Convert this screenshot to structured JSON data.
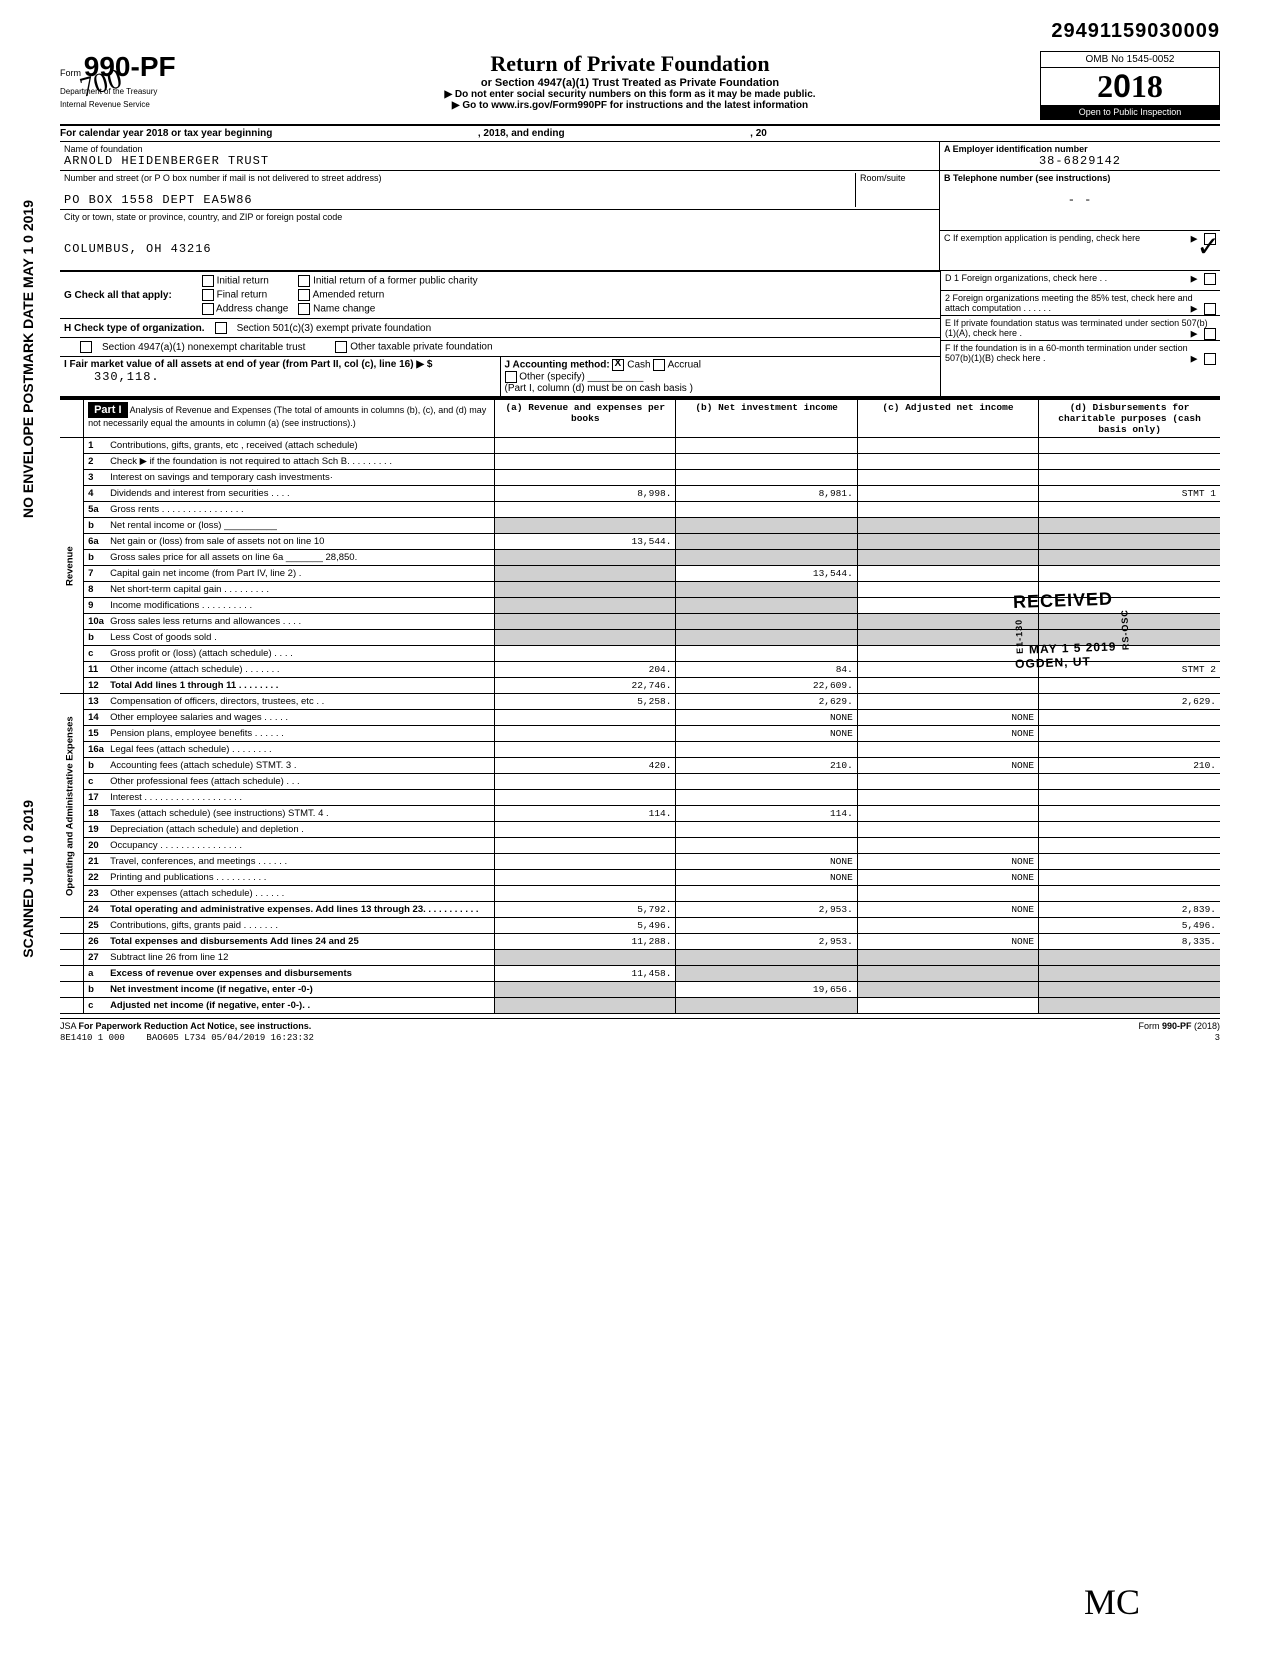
{
  "top_number": "29491159030009",
  "form": {
    "number_prefix": "Form",
    "number": "990-PF",
    "dept": "Department of the Treasury",
    "irs": "Internal Revenue Service",
    "title": "Return of Private Foundation",
    "subtitle": "or Section 4947(a)(1) Trust Treated as Private Foundation",
    "note1": "▶ Do not enter social security numbers on this form as it may be made public.",
    "note2": "▶ Go to www.irs.gov/Form990PF for instructions and the latest information",
    "omb": "OMB No 1545-0052",
    "year": "2018",
    "inspection": "Open to Public Inspection"
  },
  "tax_year": {
    "label": "For calendar year 2018 or tax year beginning",
    "mid": ", 2018, and ending",
    "end": ", 20"
  },
  "foundation": {
    "name_label": "Name of foundation",
    "name": "ARNOLD HEIDENBERGER TRUST",
    "addr_label": "Number and street (or P O  box number if mail is not delivered to street address)",
    "addr": "PO BOX 1558 DEPT EA5W86",
    "city_label": "City or town, state or province, country, and ZIP or foreign postal code",
    "city": "COLUMBUS, OH 43216",
    "room_label": "Room/suite"
  },
  "right": {
    "a_label": "A  Employer identification number",
    "a_val": "38-6829142",
    "b_label": "B  Telephone number (see instructions)",
    "b_val": "-   -",
    "c_label": "C  If exemption application is pending, check here",
    "d1": "D  1  Foreign organizations, check here . .",
    "d2": "2  Foreign organizations meeting the 85% test, check here and attach computation . . . . . .",
    "e": "E  If private foundation status was terminated under section 507(b)(1)(A), check here .",
    "f": "F  If the foundation is in a 60-month termination under section 507(b)(1)(B) check here ."
  },
  "g": {
    "label": "G  Check all that apply:",
    "opts": [
      "Initial return",
      "Final return",
      "Address change",
      "Initial return of a former public charity",
      "Amended return",
      "Name change"
    ]
  },
  "h": {
    "label": "H  Check type of organization.",
    "opt1": "Section 501(c)(3) exempt private foundation",
    "opt2": "Section 4947(a)(1) nonexempt charitable trust",
    "opt3": "Other taxable private foundation"
  },
  "i": {
    "label": "I  Fair market value of all assets at end of year (from Part II, col (c), line 16) ▶ $",
    "val": "330,118."
  },
  "j": {
    "label": "J  Accounting method:",
    "cash": "Cash",
    "accrual": "Accrual",
    "other": "Other (specify)",
    "note": "(Part I, column (d) must be on cash basis )"
  },
  "part1": {
    "label": "Part I",
    "title": "Analysis of Revenue and Expenses (The total of amounts in columns (b), (c), and (d) may not necessarily equal the amounts in column (a) (see instructions).)",
    "col_a": "(a) Revenue and expenses per books",
    "col_b": "(b) Net investment income",
    "col_c": "(c) Adjusted net income",
    "col_d": "(d) Disbursements for charitable purposes (cash basis only)"
  },
  "side_revenue": "Revenue",
  "side_expenses": "Operating and Administrative Expenses",
  "rows": [
    {
      "n": "1",
      "desc": "Contributions, gifts, grants, etc , received (attach schedule)",
      "a": "",
      "b": "",
      "c": "",
      "d": ""
    },
    {
      "n": "2",
      "desc": "Check ▶       if the foundation is not required to attach Sch B. . . . . . . . .",
      "a": "",
      "b": "",
      "c": "",
      "d": ""
    },
    {
      "n": "3",
      "desc": "Interest on savings and temporary cash investments·",
      "a": "",
      "b": "",
      "c": "",
      "d": ""
    },
    {
      "n": "4",
      "desc": "Dividends and interest from securities . . . .",
      "a": "8,998.",
      "b": "8,981.",
      "c": "",
      "d": "STMT 1"
    },
    {
      "n": "5a",
      "desc": "Gross rents . . . . . . . . . . . . . . . .",
      "a": "",
      "b": "",
      "c": "",
      "d": ""
    },
    {
      "n": "b",
      "desc": "Net rental income or (loss) __________",
      "a": "",
      "b": "",
      "c": "",
      "d": "",
      "grey_abcd": true
    },
    {
      "n": "6a",
      "desc": "Net gain or (loss) from sale of assets not on line 10",
      "a": "13,544.",
      "b": "",
      "c": "",
      "d": "",
      "grey_bcd": true
    },
    {
      "n": "b",
      "desc": "Gross sales price for all assets on line 6a _______ 28,850.",
      "a": "",
      "b": "",
      "c": "",
      "d": "",
      "grey_abcd": true
    },
    {
      "n": "7",
      "desc": "Capital gain net income (from Part IV, line 2) .",
      "a": "",
      "b": "13,544.",
      "c": "",
      "d": "",
      "grey_a": true
    },
    {
      "n": "8",
      "desc": "Net short-term capital gain . . . . . . . . .",
      "a": "",
      "b": "",
      "c": "",
      "d": "",
      "grey_ab": true
    },
    {
      "n": "9",
      "desc": "Income modifications . . . . . . . . . .",
      "a": "",
      "b": "",
      "c": "",
      "d": "",
      "grey_ab": true
    },
    {
      "n": "10a",
      "desc": "Gross sales less returns and allowances . . . .",
      "a": "",
      "b": "",
      "c": "",
      "d": "",
      "grey_abcd": true
    },
    {
      "n": "b",
      "desc": "Less Cost of goods sold .",
      "a": "",
      "b": "",
      "c": "",
      "d": "",
      "grey_abcd": true
    },
    {
      "n": "c",
      "desc": "Gross profit or (loss) (attach schedule) . . . .",
      "a": "",
      "b": "",
      "c": "",
      "d": ""
    },
    {
      "n": "11",
      "desc": "Other income (attach schedule) . . . . . . .",
      "a": "204.",
      "b": "84.",
      "c": "",
      "d": "STMT 2"
    },
    {
      "n": "12",
      "desc": "Total Add lines 1 through 11 . . . . . . . .",
      "a": "22,746.",
      "b": "22,609.",
      "c": "",
      "d": "",
      "bold": true
    },
    {
      "n": "13",
      "desc": "Compensation of officers, directors, trustees, etc . .",
      "a": "5,258.",
      "b": "2,629.",
      "c": "",
      "d": "2,629."
    },
    {
      "n": "14",
      "desc": "Other employee salaries and wages . . . . .",
      "a": "",
      "b": "NONE",
      "c": "NONE",
      "d": ""
    },
    {
      "n": "15",
      "desc": "Pension plans, employee benefits . . . . . .",
      "a": "",
      "b": "NONE",
      "c": "NONE",
      "d": ""
    },
    {
      "n": "16a",
      "desc": "Legal fees (attach schedule) . . . . . . . .",
      "a": "",
      "b": "",
      "c": "",
      "d": ""
    },
    {
      "n": "b",
      "desc": "Accounting fees (attach schedule) STMT. 3 .",
      "a": "420.",
      "b": "210.",
      "c": "NONE",
      "d": "210."
    },
    {
      "n": "c",
      "desc": "Other professional fees (attach schedule) . . .",
      "a": "",
      "b": "",
      "c": "",
      "d": ""
    },
    {
      "n": "17",
      "desc": "Interest . . . . . . . . . . . . . . . . . . .",
      "a": "",
      "b": "",
      "c": "",
      "d": ""
    },
    {
      "n": "18",
      "desc": "Taxes (attach schedule) (see instructions) STMT. 4 .",
      "a": "114.",
      "b": "114.",
      "c": "",
      "d": ""
    },
    {
      "n": "19",
      "desc": "Depreciation (attach schedule) and depletion .",
      "a": "",
      "b": "",
      "c": "",
      "d": ""
    },
    {
      "n": "20",
      "desc": "Occupancy . . . . . . . . . . . . . . . .",
      "a": "",
      "b": "",
      "c": "",
      "d": ""
    },
    {
      "n": "21",
      "desc": "Travel, conferences, and meetings . . . . . .",
      "a": "",
      "b": "NONE",
      "c": "NONE",
      "d": ""
    },
    {
      "n": "22",
      "desc": "Printing and publications . . . . . . . . . .",
      "a": "",
      "b": "NONE",
      "c": "NONE",
      "d": ""
    },
    {
      "n": "23",
      "desc": "Other expenses (attach schedule) . . . . . .",
      "a": "",
      "b": "",
      "c": "",
      "d": ""
    },
    {
      "n": "24",
      "desc": "Total operating and administrative expenses. Add lines 13 through 23. . . . . . . . . . .",
      "a": "5,792.",
      "b": "2,953.",
      "c": "NONE",
      "d": "2,839.",
      "bold": true
    },
    {
      "n": "25",
      "desc": "Contributions, gifts, grants paid . . . . . . .",
      "a": "5,496.",
      "b": "",
      "c": "",
      "d": "5,496."
    },
    {
      "n": "26",
      "desc": "Total expenses and disbursements Add lines 24 and 25",
      "a": "11,288.",
      "b": "2,953.",
      "c": "NONE",
      "d": "8,335.",
      "bold": true
    },
    {
      "n": "27",
      "desc": "Subtract line 26 from line 12",
      "a": "",
      "b": "",
      "c": "",
      "d": "",
      "grey_abcd": true
    },
    {
      "n": "a",
      "desc": "Excess  of revenue over expenses and disbursements",
      "a": "11,458.",
      "b": "",
      "c": "",
      "d": "",
      "grey_bcd": true,
      "bold": true
    },
    {
      "n": "b",
      "desc": "Net investment income (if negative, enter -0-)",
      "a": "",
      "b": "19,656.",
      "c": "",
      "d": "",
      "grey_a": true,
      "grey_cd": true,
      "bold": true
    },
    {
      "n": "c",
      "desc": "Adjusted net income (if negative, enter -0-). .",
      "a": "",
      "b": "",
      "c": "",
      "d": "",
      "grey_ab": true,
      "grey_d": true,
      "bold": true
    }
  ],
  "footer": {
    "jsa": "JSA",
    "paperwork": "For Paperwork Reduction Act Notice, see instructions.",
    "form_ref": "Form 990-PF (2018)",
    "code": "8E1410 1 000",
    "batch": "BAO605 L734 05/04/2019 16:23:32",
    "page": "3"
  },
  "stamps": {
    "envelope": "NO ENVELOPE POSTMARK DATE  MAY 1 0 2019",
    "scanned": "SCANNED  JUL 1 0 2019",
    "received": "RECEIVED",
    "received_date": "MAY  1 5 2019",
    "received_loc": "OGDEN, UT",
    "received_code1": "E1-130",
    "received_code2": "RS-OSC"
  }
}
